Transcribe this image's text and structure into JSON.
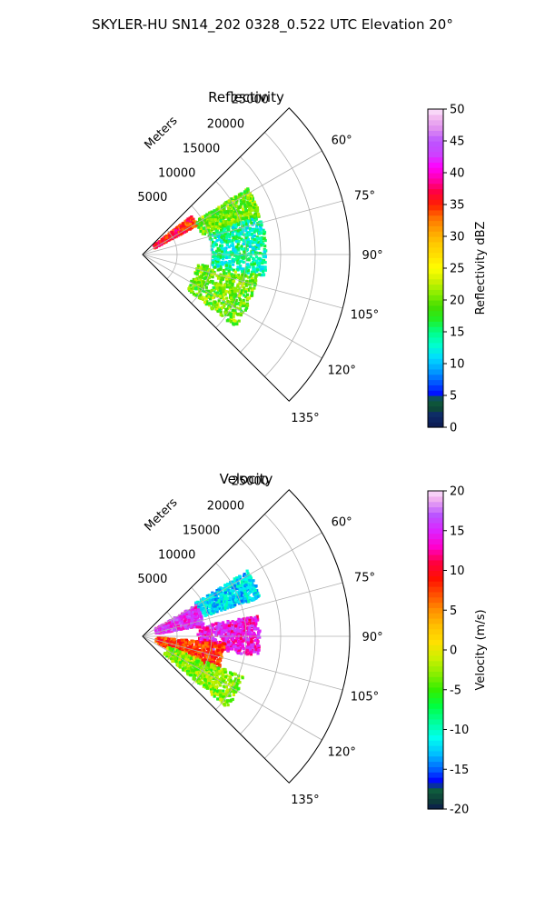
{
  "figure": {
    "title": "SKYLER-HU  SN14_202  0328_0.522 UTC Elevation 20°"
  },
  "chart_data": [
    {
      "type": "heatmap",
      "subtype": "polar-sector PPI",
      "title": "Reflectivity",
      "radial_label": "Meters",
      "radial_ticks": [
        "5000",
        "10000",
        "15000",
        "20000",
        "25000"
      ],
      "radial_range": [
        0,
        30000
      ],
      "angle_ticks": [
        "60°",
        "75°",
        "90°",
        "105°",
        "120°",
        "135°"
      ],
      "angle_range": [
        45,
        135
      ],
      "grid": true,
      "colorbar": {
        "label": "Reflectivity dBZ",
        "range": [
          0,
          50
        ],
        "ticks": [
          "0",
          "5",
          "10",
          "15",
          "20",
          "25",
          "30",
          "35",
          "40",
          "45",
          "50"
        ]
      },
      "echo_summary": [
        {
          "azimuth_range": [
            52,
            62
          ],
          "range_m": [
            2000,
            9000
          ],
          "value": 35
        },
        {
          "azimuth_range": [
            58,
            72
          ],
          "range_m": [
            9000,
            18000
          ],
          "value": 20
        },
        {
          "azimuth_range": [
            72,
            100
          ],
          "range_m": [
            10000,
            18000
          ],
          "value": 14
        },
        {
          "azimuth_range": [
            100,
            128
          ],
          "range_m": [
            8000,
            17000
          ],
          "value": 20
        }
      ]
    },
    {
      "type": "heatmap",
      "subtype": "polar-sector PPI",
      "title": "Velocity",
      "radial_label": "Meters",
      "radial_ticks": [
        "5000",
        "10000",
        "15000",
        "20000",
        "25000"
      ],
      "radial_range": [
        0,
        30000
      ],
      "angle_ticks": [
        "60°",
        "75°",
        "90°",
        "105°",
        "120°",
        "135°"
      ],
      "angle_range": [
        45,
        135
      ],
      "grid": true,
      "colorbar": {
        "label": "Velocity (m/s)",
        "range": [
          -20,
          20
        ],
        "ticks": [
          "-20",
          "-15",
          "-10",
          "-5",
          "0",
          "5",
          "10",
          "15",
          "20"
        ]
      },
      "echo_summary": [
        {
          "azimuth_range": [
            58,
            72
          ],
          "range_m": [
            9000,
            18000
          ],
          "value": -12
        },
        {
          "azimuth_range": [
            60,
            80
          ],
          "range_m": [
            2000,
            9000
          ],
          "value": 15
        },
        {
          "azimuth_range": [
            80,
            100
          ],
          "range_m": [
            8000,
            17000
          ],
          "value": 14
        },
        {
          "azimuth_range": [
            95,
            115
          ],
          "range_m": [
            2000,
            12000
          ],
          "value": 8
        },
        {
          "azimuth_range": [
            112,
            130
          ],
          "range_m": [
            4000,
            16000
          ],
          "value": -3
        }
      ]
    }
  ]
}
